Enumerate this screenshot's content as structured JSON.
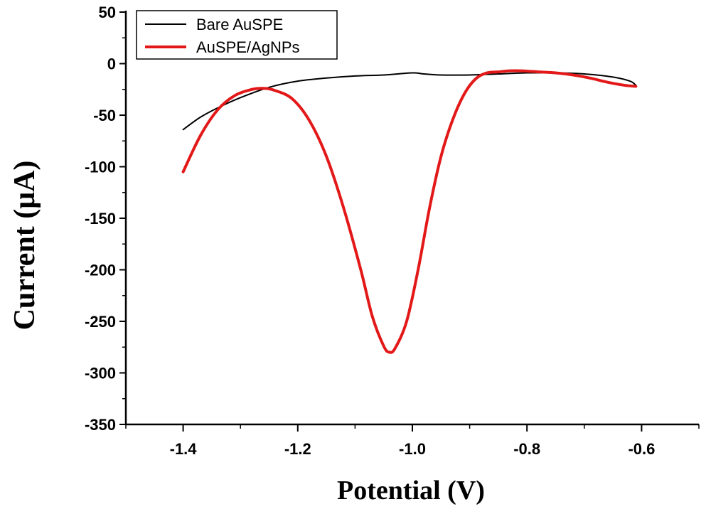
{
  "chart_data": {
    "type": "line",
    "title": "",
    "xlabel": "Potential (V)",
    "ylabel": "Current (μA)",
    "xlim": [
      -1.5,
      -0.5
    ],
    "ylim": [
      -350,
      50
    ],
    "x_ticks": [
      -1.4,
      -1.2,
      -1.0,
      -0.8,
      -0.6
    ],
    "x_tick_labels": [
      "-1.4",
      "-1.2",
      "-1.0",
      "-0.8",
      "-0.6"
    ],
    "y_ticks": [
      50,
      0,
      -50,
      -100,
      -150,
      -200,
      -250,
      -300,
      -350
    ],
    "y_tick_labels": [
      "50",
      "0",
      "-50",
      "-100",
      "-150",
      "-200",
      "-250",
      "-300",
      "-350"
    ],
    "legend_position": "top-left",
    "series": [
      {
        "name": "Bare AuSPE",
        "color": "#000000",
        "x": [
          -1.4,
          -1.37,
          -1.34,
          -1.3,
          -1.25,
          -1.2,
          -1.15,
          -1.1,
          -1.05,
          -1.0,
          -0.98,
          -0.95,
          -0.9,
          -0.85,
          -0.8,
          -0.75,
          -0.7,
          -0.65,
          -0.62,
          -0.61
        ],
        "y": [
          -64,
          -52,
          -43,
          -33,
          -23,
          -17,
          -14,
          -12,
          -11,
          -9,
          -10,
          -11,
          -11,
          -10,
          -9,
          -9,
          -10,
          -13,
          -17,
          -21
        ]
      },
      {
        "name": "AuSPE/AgNPs",
        "color": "#e31818",
        "x": [
          -1.4,
          -1.37,
          -1.34,
          -1.31,
          -1.28,
          -1.26,
          -1.24,
          -1.21,
          -1.18,
          -1.15,
          -1.12,
          -1.09,
          -1.07,
          -1.05,
          -1.04,
          -1.03,
          -1.01,
          -0.99,
          -0.97,
          -0.95,
          -0.93,
          -0.91,
          -0.89,
          -0.87,
          -0.85,
          -0.83,
          -0.81,
          -0.78,
          -0.75,
          -0.72,
          -0.69,
          -0.66,
          -0.63,
          -0.61
        ],
        "y": [
          -105,
          -70,
          -45,
          -31,
          -25,
          -24,
          -26,
          -34,
          -55,
          -90,
          -140,
          -200,
          -245,
          -274,
          -280,
          -276,
          -250,
          -200,
          -140,
          -90,
          -55,
          -30,
          -15,
          -9,
          -8,
          -7,
          -7,
          -8,
          -9,
          -11,
          -14,
          -18,
          -21,
          -22
        ]
      }
    ]
  }
}
